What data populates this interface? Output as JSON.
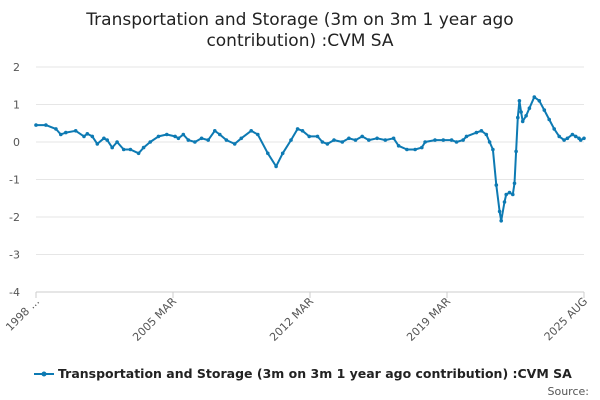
{
  "chart_data": {
    "type": "line",
    "title": "Transportation and Storage (3m on 3m 1 year ago contribution) :CVM SA",
    "title_lines": [
      "Transportation and Storage (3m on 3m 1 year ago",
      "contribution) :CVM SA"
    ],
    "xlabel": "",
    "ylabel": "",
    "x_range": [
      "1998 JAN",
      "2025 AUG"
    ],
    "x_tick_labels": [
      "1998 ...",
      "2005 MAR",
      "2012 MAR",
      "2019 MAR",
      "2025 AUG"
    ],
    "ylim": [
      -4,
      2
    ],
    "y_ticks": [
      2,
      1,
      0,
      -1,
      -2,
      -3,
      -4
    ],
    "grid": "horizontal",
    "legend_position": "bottom",
    "colors": {
      "series": "#0d7ab3",
      "grid": "#e6e6e6",
      "axis": "#cccccc"
    },
    "series": [
      {
        "name": "Transportation and Storage (3m on 3m 1 year ago contribution) :CVM SA",
        "points": [
          [
            "1998 JAN",
            0.45
          ],
          [
            "1998 JUL",
            0.45
          ],
          [
            "1999 JAN",
            0.35
          ],
          [
            "1999 APR",
            0.2
          ],
          [
            "1999 JUL",
            0.25
          ],
          [
            "2000 JAN",
            0.3
          ],
          [
            "2000 JUN",
            0.15
          ],
          [
            "2000 AUG",
            0.22
          ],
          [
            "2000 NOV",
            0.15
          ],
          [
            "2001 FEB",
            -0.05
          ],
          [
            "2001 JUN",
            0.1
          ],
          [
            "2001 AUG",
            0.05
          ],
          [
            "2001 NOV",
            -0.15
          ],
          [
            "2002 FEB",
            0.0
          ],
          [
            "2002 JUN",
            -0.2
          ],
          [
            "2002 OCT",
            -0.2
          ],
          [
            "2003 MAR",
            -0.3
          ],
          [
            "2003 JUN",
            -0.15
          ],
          [
            "2003 OCT",
            0.0
          ],
          [
            "2004 MAR",
            0.15
          ],
          [
            "2004 AUG",
            0.2
          ],
          [
            "2005 JAN",
            0.15
          ],
          [
            "2005 MAR",
            0.1
          ],
          [
            "2005 JUN",
            0.2
          ],
          [
            "2005 SEP",
            0.05
          ],
          [
            "2006 JAN",
            0.0
          ],
          [
            "2006 MAY",
            0.1
          ],
          [
            "2006 SEP",
            0.05
          ],
          [
            "2007 JAN",
            0.3
          ],
          [
            "2007 APR",
            0.2
          ],
          [
            "2007 AUG",
            0.05
          ],
          [
            "2008 JAN",
            -0.05
          ],
          [
            "2008 MAY",
            0.1
          ],
          [
            "2008 NOV",
            0.3
          ],
          [
            "2009 MAR",
            0.2
          ],
          [
            "2009 SEP",
            -0.3
          ],
          [
            "2010 FEB",
            -0.65
          ],
          [
            "2010 JUN",
            -0.3
          ],
          [
            "2010 NOV",
            0.05
          ],
          [
            "2011 MAR",
            0.35
          ],
          [
            "2011 JUN",
            0.3
          ],
          [
            "2011 OCT",
            0.15
          ],
          [
            "2012 MAR",
            0.15
          ],
          [
            "2012 JUN",
            0.0
          ],
          [
            "2012 SEP",
            -0.05
          ],
          [
            "2013 JAN",
            0.05
          ],
          [
            "2013 JUN",
            0.0
          ],
          [
            "2013 OCT",
            0.1
          ],
          [
            "2014 FEB",
            0.05
          ],
          [
            "2014 JUN",
            0.15
          ],
          [
            "2014 OCT",
            0.05
          ],
          [
            "2015 MAR",
            0.1
          ],
          [
            "2015 AUG",
            0.05
          ],
          [
            "2016 JAN",
            0.1
          ],
          [
            "2016 APR",
            -0.1
          ],
          [
            "2016 SEP",
            -0.2
          ],
          [
            "2017 FEB",
            -0.2
          ],
          [
            "2017 JUN",
            -0.15
          ],
          [
            "2017 AUG",
            0.0
          ],
          [
            "2018 FEB",
            0.05
          ],
          [
            "2018 JUL",
            0.05
          ],
          [
            "2018 DEC",
            0.05
          ],
          [
            "2019 MAR",
            0.0
          ],
          [
            "2019 JUL",
            0.05
          ],
          [
            "2019 SEP",
            0.15
          ],
          [
            "2020 MAR",
            0.25
          ],
          [
            "2020 JUN",
            0.3
          ],
          [
            "2020 SEP",
            0.2
          ],
          [
            "2020 NOV",
            0.0
          ],
          [
            "2021 JAN",
            -0.2
          ],
          [
            "2021 MAR",
            -1.15
          ],
          [
            "2021 MAY",
            -1.85
          ],
          [
            "2021 JUN",
            -2.1
          ],
          [
            "2021 AUG",
            -1.6
          ],
          [
            "2021 SEP",
            -1.4
          ],
          [
            "2021 NOV",
            -1.35
          ],
          [
            "2022 JAN",
            -1.4
          ],
          [
            "2022 FEB",
            -1.1
          ],
          [
            "2022 MAR",
            -0.25
          ],
          [
            "2022 APR",
            0.65
          ],
          [
            "2022 MAY",
            1.1
          ],
          [
            "2022 JUN",
            0.8
          ],
          [
            "2022 JUL",
            0.55
          ],
          [
            "2022 SEP",
            0.7
          ],
          [
            "2022 NOV",
            0.9
          ],
          [
            "2023 FEB",
            1.2
          ],
          [
            "2023 MAY",
            1.1
          ],
          [
            "2023 AUG",
            0.85
          ],
          [
            "2023 NOV",
            0.6
          ],
          [
            "2024 FEB",
            0.35
          ],
          [
            "2024 MAY",
            0.15
          ],
          [
            "2024 AUG",
            0.05
          ],
          [
            "2024 OCT",
            0.1
          ],
          [
            "2025 JAN",
            0.2
          ],
          [
            "2025 MAR",
            0.15
          ],
          [
            "2025 MAY",
            0.1
          ],
          [
            "2025 JUN",
            0.05
          ],
          [
            "2025 AUG",
            0.1
          ]
        ]
      }
    ],
    "source_label": "Source:"
  }
}
